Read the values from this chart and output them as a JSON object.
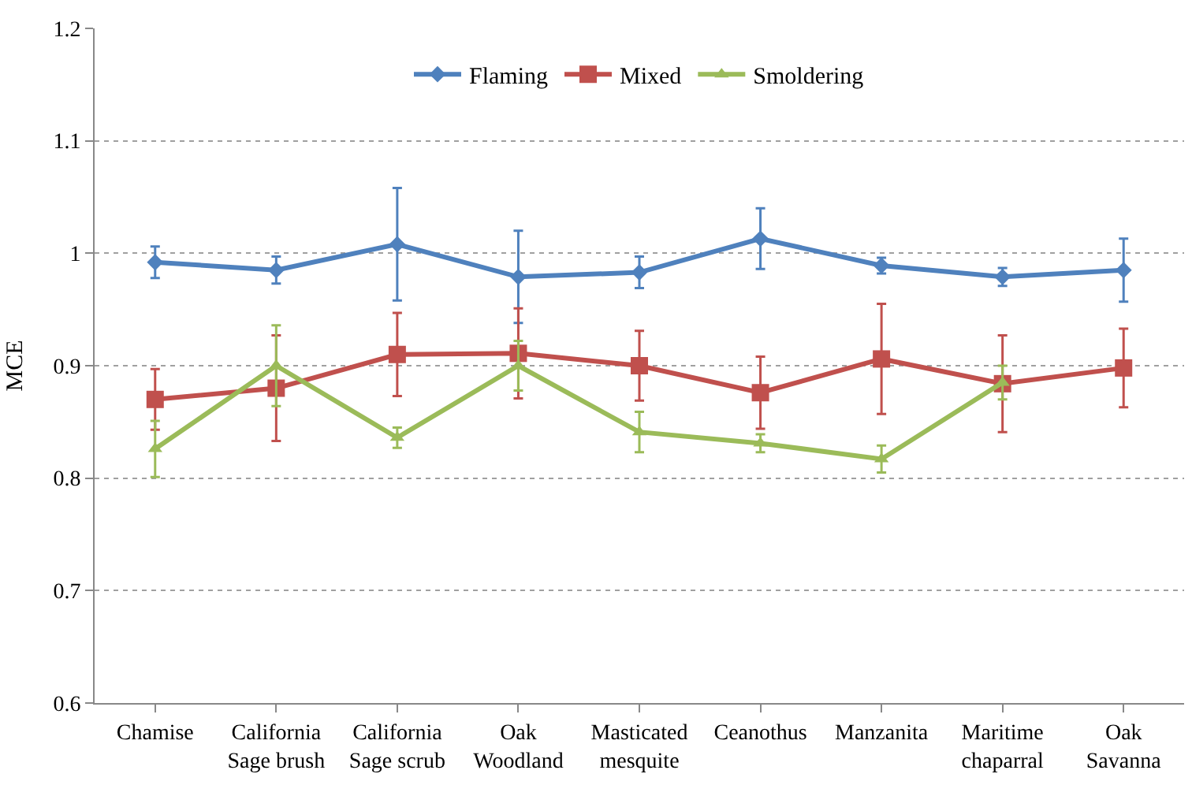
{
  "chart_data": {
    "type": "line",
    "ylabel": "MCE",
    "categories": [
      "Chamise",
      "California\nSage brush",
      "California\nSage scrub",
      "Oak\nWoodland",
      "Masticated\nmesquite",
      "Ceanothus",
      "Manzanita",
      "Maritime\nchaparral",
      "Oak\nSavanna"
    ],
    "series": [
      {
        "name": "Flaming",
        "color": "#4f81bd",
        "marker": "diamond",
        "values": [
          0.992,
          0.985,
          1.008,
          0.979,
          0.983,
          1.013,
          0.989,
          0.979,
          0.985
        ],
        "errors": [
          0.014,
          0.012,
          0.05,
          0.041,
          0.014,
          0.027,
          0.007,
          0.008,
          0.028
        ]
      },
      {
        "name": "Mixed",
        "color": "#c0504d",
        "marker": "square",
        "values": [
          0.87,
          0.88,
          0.91,
          0.911,
          0.9,
          0.876,
          0.906,
          0.884,
          0.898
        ],
        "errors": [
          0.027,
          0.047,
          0.037,
          0.04,
          0.031,
          0.032,
          0.049,
          0.043,
          0.035
        ]
      },
      {
        "name": "Smoldering",
        "color": "#9bbb59",
        "marker": "triangle",
        "values": [
          0.826,
          0.9,
          0.836,
          0.9,
          0.841,
          0.831,
          0.817,
          0.885,
          null
        ],
        "errors": [
          0.025,
          0.036,
          0.009,
          0.022,
          0.018,
          0.008,
          0.012,
          0.015,
          null
        ]
      }
    ],
    "ylim": [
      0.6,
      1.2
    ],
    "yticks": [
      0.6,
      0.7,
      0.8,
      0.9,
      1,
      1.1,
      1.2
    ],
    "grid": "y",
    "legend": "top",
    "line_style": "solid"
  }
}
